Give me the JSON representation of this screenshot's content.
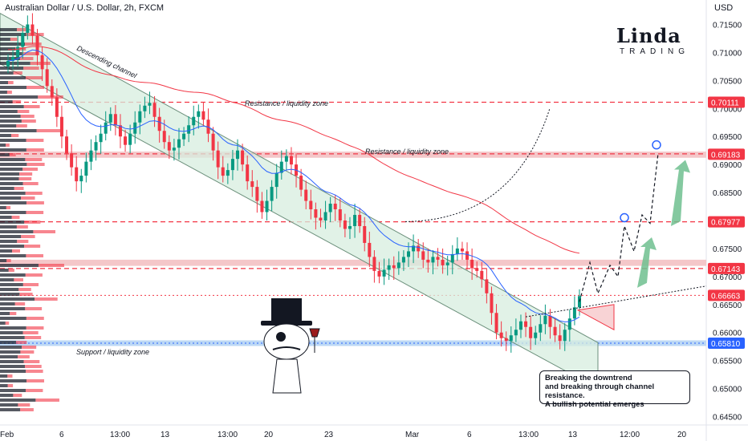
{
  "header": {
    "title": "Australian Dollar / U.S. Dollar, 2h, FXCM",
    "currency": "USD"
  },
  "logo": {
    "main": "Linda",
    "sub": "TRADING"
  },
  "annotations": {
    "channel": "Descending channel",
    "resistance_top": "Resistance / liquidity zone",
    "resistance_mid": "Resistance / liquidity zone",
    "support": "Support / liquidity zone",
    "callout_line1": "Breaking the downtrend",
    "callout_line2": "and breaking through channel resistance.",
    "callout_line3": "A bullish potential emerges"
  },
  "colors": {
    "up": "#089981",
    "down": "#f23645",
    "channel_fill": "#d7eedf",
    "resistance": "#f23645",
    "support_zone": "#bcd8f5",
    "resistance_zone": "#f4c7c9",
    "ma_blue": "#2962ff",
    "ma_red": "#f23645"
  },
  "chart_data": {
    "type": "candlestick",
    "symbol": "Australian Dollar / U.S. Dollar, 2h, FXCM",
    "ylim": [
      0.6435,
      0.7165
    ],
    "y_ticks": [
      "0.71500",
      "0.71000",
      "0.70500",
      "0.70000",
      "0.69500",
      "0.69000",
      "0.68500",
      "0.68000",
      "0.67500",
      "0.67000",
      "0.66500",
      "0.66000",
      "0.65500",
      "0.65000",
      "0.64500"
    ],
    "x_ticks": [
      "Feb",
      "6",
      "13:00",
      "13",
      "13:00",
      "20",
      "23",
      "Mar",
      "6",
      "13:00",
      "13",
      "12:00",
      "20"
    ],
    "price_labels": [
      {
        "value": 0.70111,
        "text": "0.70111",
        "color": "#f23645"
      },
      {
        "value": 0.69183,
        "text": "0.69183",
        "color": "#f23645"
      },
      {
        "value": 0.67977,
        "text": "0.67977",
        "color": "#f23645"
      },
      {
        "value": 0.67143,
        "text": "0.67143",
        "color": "#f23645"
      },
      {
        "value": 0.66663,
        "text": "0.66663",
        "color": "#f23645"
      },
      {
        "value": 0.6581,
        "text": "0.65810",
        "color": "#2962ff"
      }
    ],
    "closes": [
      0.7085,
      0.7092,
      0.711,
      0.7135,
      0.715,
      0.713,
      0.7095,
      0.707,
      0.704,
      0.702,
      0.6985,
      0.695,
      0.692,
      0.6895,
      0.687,
      0.688,
      0.6905,
      0.6925,
      0.694,
      0.6955,
      0.6975,
      0.699,
      0.697,
      0.695,
      0.6935,
      0.6955,
      0.6975,
      0.6995,
      0.7005,
      0.701,
      0.6985,
      0.696,
      0.694,
      0.6925,
      0.693,
      0.6945,
      0.6955,
      0.697,
      0.6985,
      0.6995,
      0.698,
      0.6955,
      0.6925,
      0.6895,
      0.688,
      0.689,
      0.691,
      0.6925,
      0.69,
      0.687,
      0.686,
      0.6835,
      0.6815,
      0.6835,
      0.686,
      0.6885,
      0.6905,
      0.6915,
      0.69,
      0.688,
      0.6855,
      0.6835,
      0.682,
      0.6805,
      0.68,
      0.6815,
      0.683,
      0.682,
      0.68,
      0.6785,
      0.679,
      0.681,
      0.679,
      0.676,
      0.6735,
      0.671,
      0.67,
      0.6712,
      0.672,
      0.6715,
      0.6725,
      0.6735,
      0.6745,
      0.6755,
      0.6745,
      0.673,
      0.6725,
      0.6735,
      0.673,
      0.672,
      0.6725,
      0.674,
      0.675,
      0.6745,
      0.673,
      0.6715,
      0.671,
      0.6695,
      0.667,
      0.6635,
      0.66,
      0.659,
      0.6585,
      0.6595,
      0.6605,
      0.662,
      0.661,
      0.659,
      0.66,
      0.6615,
      0.663,
      0.661,
      0.6595,
      0.6585,
      0.6605,
      0.6625,
      0.6645,
      0.6665
    ],
    "channel": {
      "upper": [
        [
          0,
          0.717
        ],
        [
          745,
          0.6582
        ]
      ],
      "lower": [
        [
          0,
          0.708
        ],
        [
          745,
          0.65
        ]
      ]
    },
    "levels": {
      "resistance_1": 0.70111,
      "resistance_2_zone": [
        0.6912,
        0.6923
      ],
      "resistance_3": 0.67977,
      "resistance_4_zone": [
        0.6719,
        0.673
      ],
      "resistance_4": 0.67143,
      "current": 0.66663,
      "support_zone": [
        0.6576,
        0.6586
      ],
      "support": 0.6581
    }
  }
}
